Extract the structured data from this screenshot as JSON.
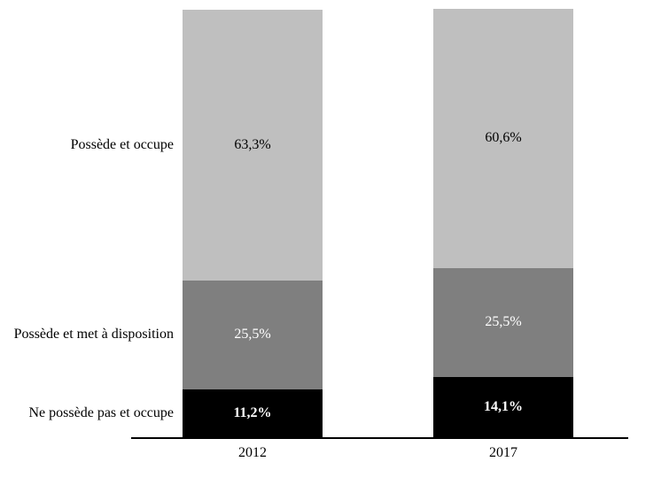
{
  "chart_data": {
    "type": "bar",
    "stacked": true,
    "orientation": "vertical",
    "title": "",
    "xlabel": "",
    "ylabel": "",
    "ylim": [
      0,
      100
    ],
    "grid": false,
    "legend_position": "none",
    "series_labels_position": "left-of-first-bar",
    "background_color": "#ffffff",
    "axis_line_color": "#000000",
    "categories": [
      "2012",
      "2017"
    ],
    "series": [
      {
        "name": "Possède et occupe",
        "values": [
          63.3,
          60.6
        ],
        "display_labels": [
          "63,3%",
          "60,6%"
        ],
        "color": "#bfbfbf",
        "label_color": "#000000",
        "label_bold": false
      },
      {
        "name": "Possède et met à disposition",
        "values": [
          25.5,
          25.5
        ],
        "display_labels": [
          "25,5%",
          "25,5%"
        ],
        "color": "#7f7f7f",
        "label_color": "#ffffff",
        "label_bold": false
      },
      {
        "name": "Ne possède pas et occupe",
        "values": [
          11.2,
          14.1
        ],
        "display_labels": [
          "11,2%",
          "14,1%"
        ],
        "color": "#000000",
        "label_color": "#ffffff",
        "label_bold": true
      }
    ]
  }
}
